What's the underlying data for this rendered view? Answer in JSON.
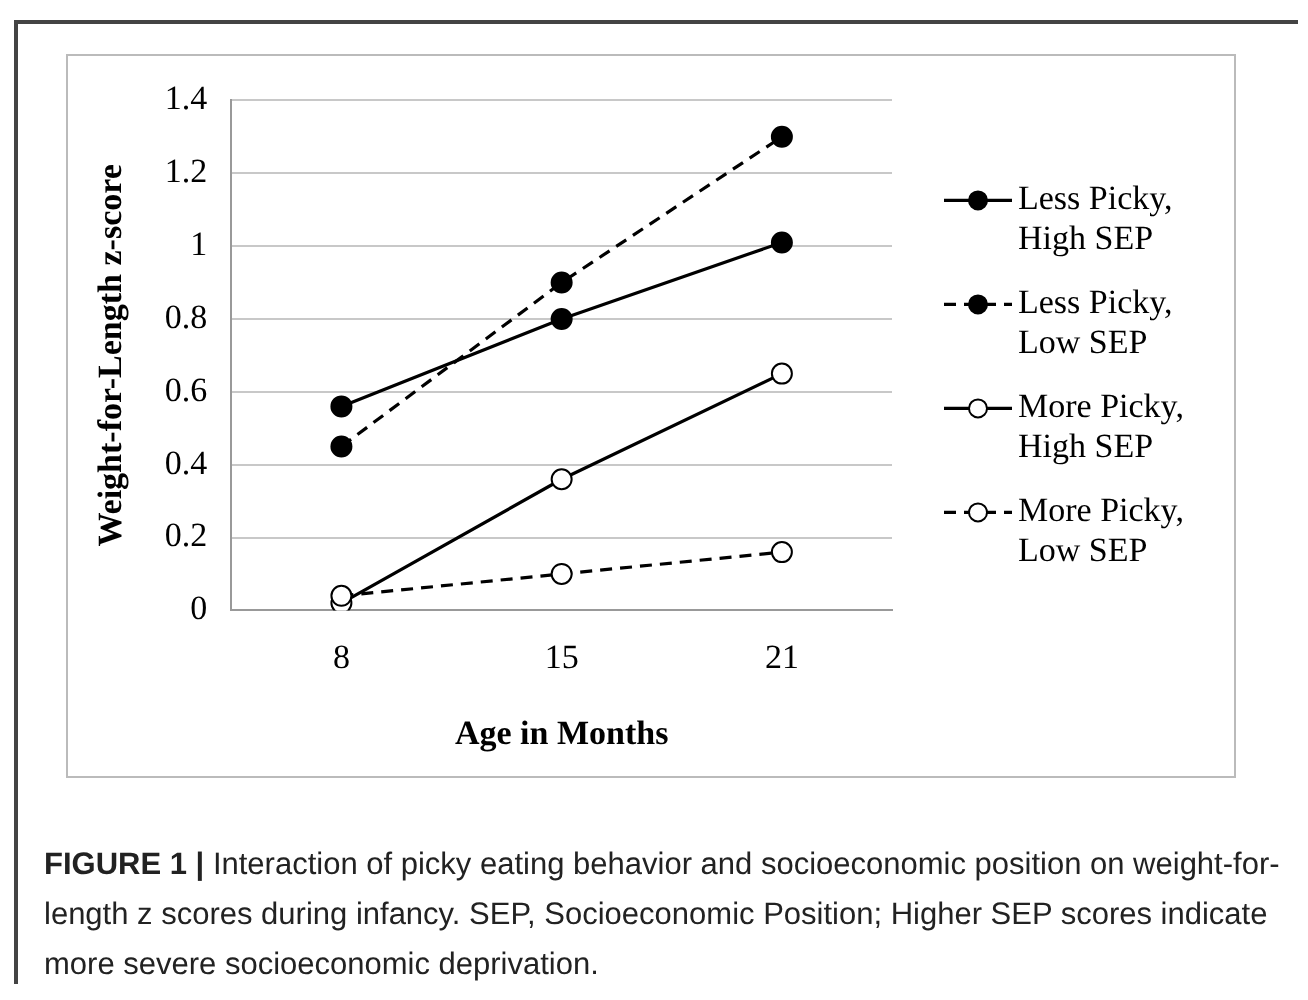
{
  "chart_data": {
    "type": "line",
    "xlabel": "Age in Months",
    "ylabel": "Weight-for-Length z-score",
    "categories": [
      "8",
      "15",
      "21"
    ],
    "ylim": [
      0,
      1.4
    ],
    "yticks": [
      0,
      0.2,
      0.4,
      0.6,
      0.8,
      1,
      1.2,
      1.4
    ],
    "grid": "y",
    "legend": "right",
    "marker": "circle",
    "series": [
      {
        "name": "Less Picky, High SEP",
        "color": "#000000",
        "line_style": "solid",
        "values": [
          0.56,
          0.8,
          1.01
        ]
      },
      {
        "name": "Less Picky, Low SEP",
        "color": "#000000",
        "line_style": "dashed",
        "values": [
          0.45,
          0.9,
          1.3
        ]
      },
      {
        "name": "More Picky, High SEP",
        "color": "#ffffff",
        "line_style": "solid",
        "values": [
          0.02,
          0.36,
          0.65
        ]
      },
      {
        "name": "More Picky, Low SEP",
        "color": "#ffffff",
        "line_style": "dashed",
        "values": [
          0.04,
          0.1,
          0.16
        ]
      }
    ],
    "annotations": [
      "FIGURE 1 | Interaction of picky eating behavior and socioeconomic position on weight-for-length z scores during infancy. SEP, Socioeconomic Position; Higher SEP scores indicate more severe socioeconomic deprivation."
    ]
  }
}
